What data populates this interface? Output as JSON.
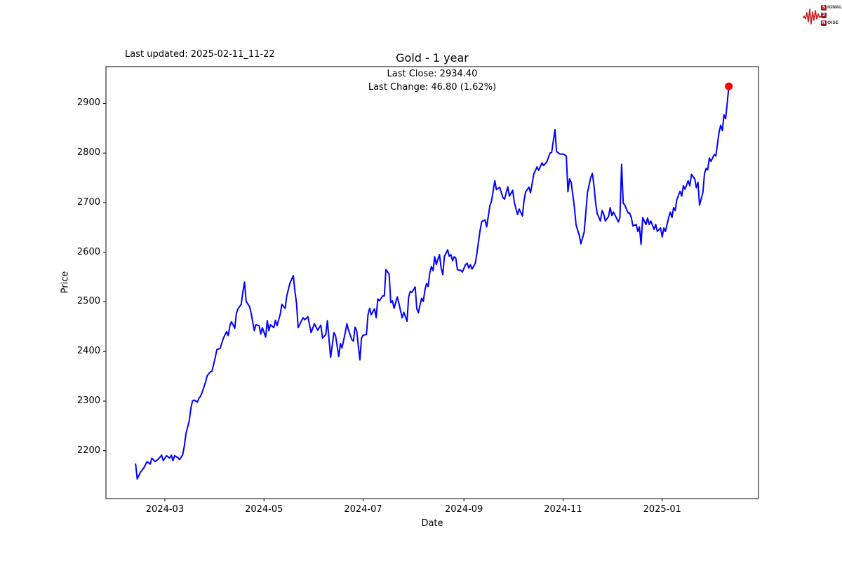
{
  "page": {
    "last_updated": "Last updated: 2025-02-11_11-22"
  },
  "logo": {
    "waveform_color": "#c4201f",
    "box_color": "#9a191c",
    "row1_box": "S",
    "row1_rest": "IGNAL",
    "row2_box": "2",
    "row3_box": "N",
    "row3_rest": "OISE"
  },
  "chart_data": {
    "type": "line",
    "title": "Gold - 1 year",
    "subtitle_lines": [
      "Last Close: 2934.40",
      "Last Change: 46.80 (1.62%)"
    ],
    "xlabel": "Date",
    "ylabel": "Price",
    "start_date": "2024-02-12",
    "end_date": "2025-02-11",
    "last_close": 2934.4,
    "last_change": 46.8,
    "last_change_pct": 1.62,
    "line_color": "#0000ff",
    "marker_color": "#ff0000",
    "grid": false,
    "legend": false,
    "xlim_days": [
      -18.25,
      383.25
    ],
    "ylim": [
      2103.5,
      2974.1
    ],
    "y_ticks": [
      2200,
      2300,
      2400,
      2500,
      2600,
      2700,
      2800,
      2900
    ],
    "x_ticks": [
      {
        "label": "2024-03",
        "day": 18
      },
      {
        "label": "2024-05",
        "day": 79
      },
      {
        "label": "2024-07",
        "day": 140
      },
      {
        "label": "2024-09",
        "day": 202
      },
      {
        "label": "2024-11",
        "day": 263
      },
      {
        "label": "2025-01",
        "day": 324
      }
    ],
    "series": [
      {
        "name": "Gold",
        "points": [
          [
            0,
            2173
          ],
          [
            1,
            2143
          ],
          [
            3,
            2157
          ],
          [
            5,
            2165
          ],
          [
            7,
            2178
          ],
          [
            9,
            2173
          ],
          [
            10,
            2185
          ],
          [
            12,
            2178
          ],
          [
            14,
            2183
          ],
          [
            16,
            2191
          ],
          [
            17,
            2180
          ],
          [
            19,
            2190
          ],
          [
            21,
            2185
          ],
          [
            22,
            2191
          ],
          [
            23,
            2180
          ],
          [
            24,
            2190
          ],
          [
            26,
            2186
          ],
          [
            27,
            2182
          ],
          [
            29,
            2192
          ],
          [
            30,
            2210
          ],
          [
            31,
            2235
          ],
          [
            33,
            2260
          ],
          [
            34,
            2285
          ],
          [
            35,
            2300
          ],
          [
            36,
            2302
          ],
          [
            38,
            2298
          ],
          [
            39,
            2306
          ],
          [
            40,
            2310
          ],
          [
            41,
            2318
          ],
          [
            43,
            2338
          ],
          [
            44,
            2351
          ],
          [
            46,
            2359
          ],
          [
            47,
            2360
          ],
          [
            49,
            2388
          ],
          [
            50,
            2404
          ],
          [
            52,
            2406
          ],
          [
            54,
            2427
          ],
          [
            56,
            2440
          ],
          [
            57,
            2432
          ],
          [
            58,
            2452
          ],
          [
            59,
            2460
          ],
          [
            61,
            2447
          ],
          [
            62,
            2477
          ],
          [
            63,
            2486
          ],
          [
            65,
            2495
          ],
          [
            66,
            2520
          ],
          [
            67,
            2540
          ],
          [
            68,
            2501
          ],
          [
            70,
            2491
          ],
          [
            71,
            2479
          ],
          [
            73,
            2442
          ],
          [
            74,
            2454
          ],
          [
            76,
            2452
          ],
          [
            77,
            2435
          ],
          [
            78,
            2448
          ],
          [
            80,
            2429
          ],
          [
            81,
            2462
          ],
          [
            82,
            2442
          ],
          [
            83,
            2454
          ],
          [
            85,
            2448
          ],
          [
            86,
            2463
          ],
          [
            87,
            2452
          ],
          [
            89,
            2475
          ],
          [
            90,
            2495
          ],
          [
            92,
            2487
          ],
          [
            93,
            2512
          ],
          [
            95,
            2538
          ],
          [
            97,
            2553
          ],
          [
            98,
            2522
          ],
          [
            99,
            2497
          ],
          [
            100,
            2448
          ],
          [
            103,
            2468
          ],
          [
            104,
            2464
          ],
          [
            106,
            2470
          ],
          [
            108,
            2438
          ],
          [
            110,
            2456
          ],
          [
            112,
            2443
          ],
          [
            114,
            2453
          ],
          [
            115,
            2427
          ],
          [
            117,
            2434
          ],
          [
            118,
            2462
          ],
          [
            120,
            2388
          ],
          [
            122,
            2438
          ],
          [
            123,
            2432
          ],
          [
            125,
            2390
          ],
          [
            126,
            2416
          ],
          [
            127,
            2407
          ],
          [
            129,
            2438
          ],
          [
            130,
            2456
          ],
          [
            131,
            2443
          ],
          [
            133,
            2424
          ],
          [
            134,
            2421
          ],
          [
            135,
            2449
          ],
          [
            136,
            2442
          ],
          [
            138,
            2383
          ],
          [
            139,
            2427
          ],
          [
            140,
            2433
          ],
          [
            142,
            2434
          ],
          [
            143,
            2474
          ],
          [
            144,
            2487
          ],
          [
            145,
            2474
          ],
          [
            147,
            2486
          ],
          [
            148,
            2468
          ],
          [
            149,
            2506
          ],
          [
            150,
            2502
          ],
          [
            152,
            2512
          ],
          [
            153,
            2512
          ],
          [
            154,
            2565
          ],
          [
            156,
            2556
          ],
          [
            157,
            2499
          ],
          [
            158,
            2502
          ],
          [
            159,
            2487
          ],
          [
            161,
            2510
          ],
          [
            162,
            2497
          ],
          [
            164,
            2468
          ],
          [
            165,
            2479
          ],
          [
            167,
            2461
          ],
          [
            168,
            2510
          ],
          [
            169,
            2521
          ],
          [
            170,
            2519
          ],
          [
            172,
            2530
          ],
          [
            173,
            2486
          ],
          [
            174,
            2478
          ],
          [
            175,
            2494
          ],
          [
            176,
            2507
          ],
          [
            177,
            2501
          ],
          [
            178,
            2524
          ],
          [
            179,
            2537
          ],
          [
            180,
            2531
          ],
          [
            181,
            2558
          ],
          [
            182,
            2571
          ],
          [
            183,
            2563
          ],
          [
            184,
            2591
          ],
          [
            185,
            2575
          ],
          [
            186,
            2586
          ],
          [
            187,
            2595
          ],
          [
            188,
            2568
          ],
          [
            189,
            2555
          ],
          [
            190,
            2592
          ],
          [
            191,
            2598
          ],
          [
            192,
            2605
          ],
          [
            193,
            2592
          ],
          [
            194,
            2595
          ],
          [
            195,
            2583
          ],
          [
            196,
            2591
          ],
          [
            197,
            2588
          ],
          [
            198,
            2565
          ],
          [
            199,
            2564
          ],
          [
            200,
            2564
          ],
          [
            201,
            2560
          ],
          [
            203,
            2575
          ],
          [
            204,
            2578
          ],
          [
            205,
            2568
          ],
          [
            206,
            2575
          ],
          [
            207,
            2566
          ],
          [
            209,
            2578
          ],
          [
            210,
            2598
          ],
          [
            212,
            2645
          ],
          [
            213,
            2662
          ],
          [
            215,
            2665
          ],
          [
            216,
            2651
          ],
          [
            218,
            2694
          ],
          [
            219,
            2703
          ],
          [
            221,
            2744
          ],
          [
            222,
            2726
          ],
          [
            224,
            2731
          ],
          [
            226,
            2710
          ],
          [
            227,
            2707
          ],
          [
            229,
            2732
          ],
          [
            230,
            2713
          ],
          [
            232,
            2725
          ],
          [
            233,
            2700
          ],
          [
            235,
            2676
          ],
          [
            236,
            2687
          ],
          [
            238,
            2673
          ],
          [
            239,
            2705
          ],
          [
            240,
            2722
          ],
          [
            242,
            2731
          ],
          [
            243,
            2720
          ],
          [
            245,
            2758
          ],
          [
            247,
            2772
          ],
          [
            248,
            2765
          ],
          [
            250,
            2780
          ],
          [
            251,
            2775
          ],
          [
            253,
            2782
          ],
          [
            255,
            2800
          ],
          [
            256,
            2801
          ],
          [
            258,
            2847
          ],
          [
            259,
            2803
          ],
          [
            261,
            2798
          ],
          [
            263,
            2798
          ],
          [
            265,
            2794
          ],
          [
            266,
            2722
          ],
          [
            267,
            2748
          ],
          [
            268,
            2741
          ],
          [
            270,
            2690
          ],
          [
            271,
            2655
          ],
          [
            273,
            2634
          ],
          [
            274,
            2617
          ],
          [
            276,
            2641
          ],
          [
            277,
            2680
          ],
          [
            278,
            2720
          ],
          [
            280,
            2750
          ],
          [
            281,
            2759
          ],
          [
            282,
            2735
          ],
          [
            283,
            2700
          ],
          [
            284,
            2678
          ],
          [
            286,
            2663
          ],
          [
            287,
            2684
          ],
          [
            288,
            2677
          ],
          [
            289,
            2663
          ],
          [
            291,
            2672
          ],
          [
            292,
            2690
          ],
          [
            293,
            2674
          ],
          [
            294,
            2681
          ],
          [
            296,
            2668
          ],
          [
            297,
            2661
          ],
          [
            298,
            2670
          ],
          [
            299,
            2777
          ],
          [
            300,
            2699
          ],
          [
            301,
            2695
          ],
          [
            303,
            2679
          ],
          [
            304,
            2679
          ],
          [
            305,
            2670
          ],
          [
            306,
            2653
          ],
          [
            308,
            2656
          ],
          [
            309,
            2642
          ],
          [
            310,
            2651
          ],
          [
            311,
            2616
          ],
          [
            312,
            2670
          ],
          [
            314,
            2656
          ],
          [
            315,
            2669
          ],
          [
            316,
            2656
          ],
          [
            317,
            2663
          ],
          [
            319,
            2646
          ],
          [
            320,
            2656
          ],
          [
            321,
            2642
          ],
          [
            323,
            2649
          ],
          [
            324,
            2631
          ],
          [
            325,
            2649
          ],
          [
            326,
            2642
          ],
          [
            328,
            2670
          ],
          [
            329,
            2681
          ],
          [
            330,
            2670
          ],
          [
            331,
            2690
          ],
          [
            332,
            2684
          ],
          [
            333,
            2706
          ],
          [
            335,
            2723
          ],
          [
            336,
            2713
          ],
          [
            337,
            2734
          ],
          [
            338,
            2727
          ],
          [
            340,
            2744
          ],
          [
            341,
            2734
          ],
          [
            342,
            2757
          ],
          [
            344,
            2748
          ],
          [
            345,
            2730
          ],
          [
            346,
            2741
          ],
          [
            347,
            2695
          ],
          [
            349,
            2720
          ],
          [
            350,
            2758
          ],
          [
            351,
            2769
          ],
          [
            352,
            2766
          ],
          [
            353,
            2790
          ],
          [
            354,
            2783
          ],
          [
            356,
            2797
          ],
          [
            357,
            2794
          ],
          [
            358,
            2818
          ],
          [
            359,
            2842
          ],
          [
            360,
            2856
          ],
          [
            361,
            2845
          ],
          [
            362,
            2877
          ],
          [
            363,
            2869
          ],
          [
            364,
            2900
          ],
          [
            365,
            2934.4
          ]
        ]
      }
    ]
  }
}
